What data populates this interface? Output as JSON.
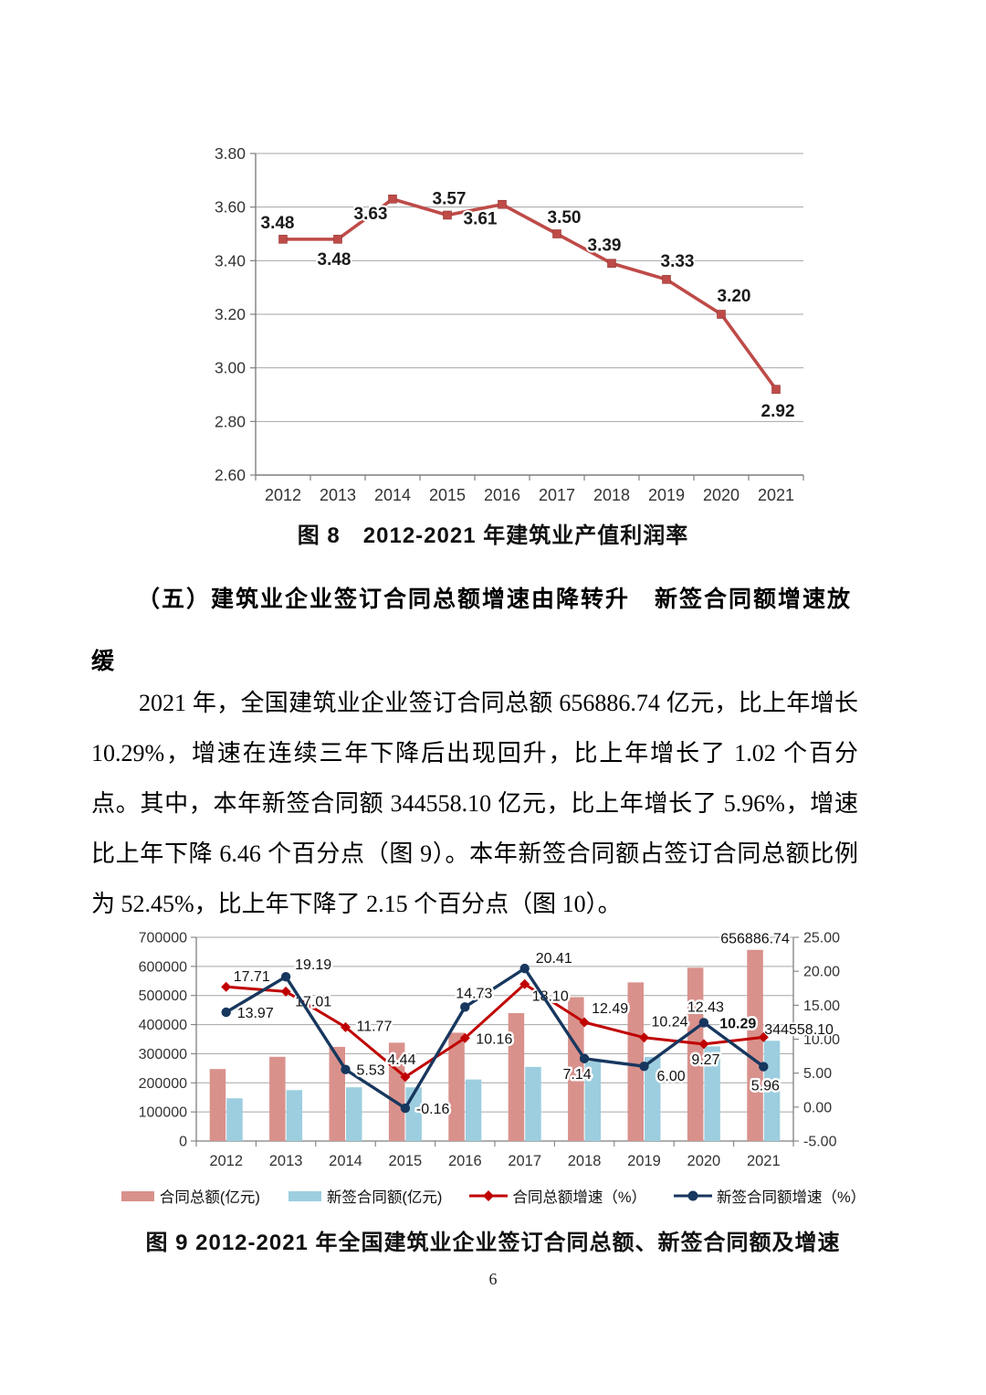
{
  "page": {
    "number": "6"
  },
  "section": {
    "heading_lines": [
      "（五）建筑业企业签订合同总额增速由降转升　新签合同额增速放",
      "缓"
    ],
    "paragraph": "2021 年，全国建筑业企业签订合同总额 656886.74 亿元，比上年增长 10.29%，增速在连续三年下降后出现回升，比上年增长了 1.02 个百分点。其中，本年新签合同额 344558.10 亿元，比上年增长了 5.96%，增速比上年下降 6.46 个百分点（图 9）。本年新签合同额占签订合同总额比例为 52.45%，比上年下降了 2.15 个百分点（图 10）。"
  },
  "chart_data": [
    {
      "type": "line",
      "title": "图 8　2012-2021 年建筑业产值利润率",
      "categories": [
        "2012",
        "2013",
        "2014",
        "2015",
        "2016",
        "2017",
        "2018",
        "2019",
        "2020",
        "2021"
      ],
      "series": [
        {
          "values": [
            3.48,
            3.48,
            3.63,
            3.57,
            3.61,
            3.5,
            3.39,
            3.33,
            3.2,
            2.92
          ],
          "color": "#BE4B48"
        }
      ],
      "xlabel": "",
      "ylabel": "",
      "ylim": [
        2.6,
        3.8
      ],
      "ytick_step": 0.2,
      "grid": true,
      "legend": "none",
      "grid_color": "#A6A6A6",
      "axis_color": "#7F7F7F",
      "label_color": "#1a1a1a"
    },
    {
      "type": "combo_bar_line",
      "title": "图 9 2012-2021 年全国建筑业企业签订合同总额、新签合同额及增速",
      "categories": [
        "2012",
        "2013",
        "2014",
        "2015",
        "2016",
        "2017",
        "2018",
        "2019",
        "2020",
        "2021"
      ],
      "bar_series": [
        {
          "name": "合同总额(亿元)",
          "color": "#D9918C",
          "values": [
            247400,
            289400,
            323500,
            337900,
            372200,
            439500,
            494400,
            545100,
            595600,
            656886.74
          ],
          "labeled_index": 9,
          "label_text": "656886.74"
        },
        {
          "name": "新签合同额(亿元)",
          "color": "#9CCEDF",
          "values": [
            146800,
            175000,
            184600,
            184400,
            211500,
            254700,
            272900,
            289200,
            325200,
            344558.1
          ],
          "labeled_index": 9,
          "label_text": "344558.10"
        }
      ],
      "line_series": [
        {
          "name": "合同总额增速（%）",
          "color": "#C00000",
          "marker": "diamond",
          "values": [
            17.71,
            17.01,
            11.77,
            4.44,
            10.16,
            18.1,
            12.49,
            10.24,
            9.27,
            10.29
          ]
        },
        {
          "name": "新签合同额增速（%）",
          "color": "#17375E",
          "marker": "circle",
          "values": [
            13.97,
            19.19,
            5.53,
            -0.16,
            14.73,
            20.41,
            7.14,
            6.0,
            12.43,
            5.96
          ]
        }
      ],
      "left_axis": {
        "min": 0,
        "max": 700000,
        "step": 100000
      },
      "right_axis": {
        "min": -5.0,
        "max": 25.0,
        "step": 5.0
      },
      "grid": true,
      "legend_position": "bottom",
      "grid_color": "#A6A6A6",
      "axis_color": "#7F7F7F",
      "label_color": "#111111"
    }
  ]
}
